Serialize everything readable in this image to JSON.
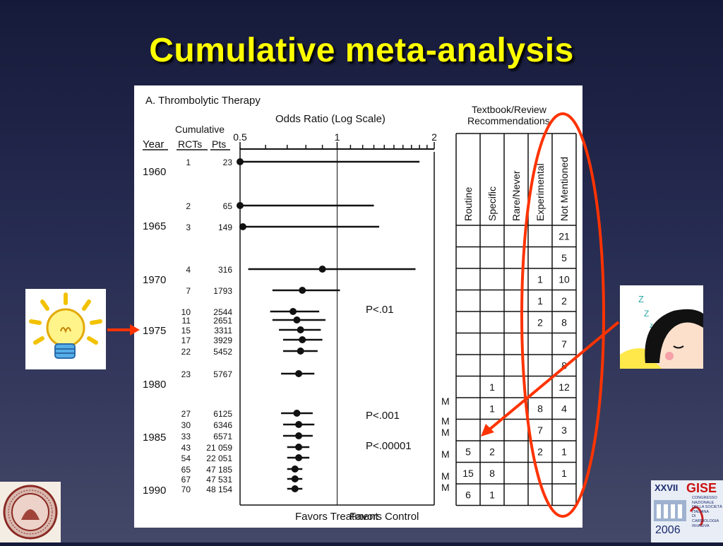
{
  "slide": {
    "title": "Cumulative meta-analysis"
  },
  "figure": {
    "panel_title": "A.  Thrombolytic Therapy",
    "axis_title": "Odds Ratio (Log Scale)",
    "col_year": "Year",
    "col_cumulative": "Cumulative",
    "col_rcts": "RCTs",
    "col_pts": "Pts",
    "favors_treatment": "Favors Treatment",
    "favors_control": "Favors Control",
    "p_values": [
      "P<.01",
      "P<.001",
      "P<.00001"
    ],
    "year_labels": [
      "1960",
      "1965",
      "1970",
      "1975",
      "1980",
      "1985",
      "1990"
    ],
    "recommendations_title_1": "Textbook/Review",
    "recommendations_title_2": "Recommendations",
    "rec_columns": [
      "Routine",
      "Specific",
      "Rare/Never",
      "Experimental",
      "Not Mentioned"
    ],
    "rec_rows": [
      [
        "",
        "",
        "",
        "",
        "21"
      ],
      [
        "",
        "",
        "",
        "",
        "5"
      ],
      [
        "",
        "",
        "",
        "1",
        "10"
      ],
      [
        "",
        "",
        "",
        "1",
        "2"
      ],
      [
        "",
        "",
        "",
        "2",
        "8"
      ],
      [
        "",
        "",
        "",
        "",
        "7"
      ],
      [
        "",
        "",
        "",
        "",
        "8"
      ],
      [
        "",
        "1",
        "",
        "",
        "12"
      ],
      [
        "",
        "1",
        "",
        "8",
        "4"
      ],
      [
        "",
        "",
        "",
        "7",
        "3"
      ],
      [
        "5",
        "2",
        "",
        "2",
        "1"
      ],
      [
        "15",
        "8",
        "",
        "",
        "1"
      ],
      [
        "6",
        "1",
        "",
        "",
        ""
      ]
    ],
    "m_markers": [
      "M",
      "M",
      "M",
      "M",
      "M",
      "M"
    ]
  },
  "chart_data": {
    "type": "forest",
    "xlabel": "Odds Ratio (Log Scale)",
    "x_scale": "log",
    "xlim": [
      0.5,
      2
    ],
    "x_ticks": [
      "0.5",
      "1",
      "2"
    ],
    "points": [
      {
        "rcts": "1",
        "pts": "23",
        "or": 0.5,
        "lo": 0.5,
        "hi": 1.8
      },
      {
        "rcts": "2",
        "pts": "65",
        "or": 0.5,
        "lo": 0.5,
        "hi": 1.3
      },
      {
        "rcts": "3",
        "pts": "149",
        "or": 0.51,
        "lo": 0.5,
        "hi": 1.35
      },
      {
        "rcts": "4",
        "pts": "316",
        "or": 0.9,
        "lo": 0.53,
        "hi": 1.75
      },
      {
        "rcts": "7",
        "pts": "1793",
        "or": 0.78,
        "lo": 0.63,
        "hi": 1.02
      },
      {
        "rcts": "10",
        "pts": "2544",
        "or": 0.73,
        "lo": 0.62,
        "hi": 0.88
      },
      {
        "rcts": "11",
        "pts": "2651",
        "or": 0.75,
        "lo": 0.63,
        "hi": 0.92
      },
      {
        "rcts": "15",
        "pts": "3311",
        "or": 0.77,
        "lo": 0.66,
        "hi": 0.89
      },
      {
        "rcts": "17",
        "pts": "3929",
        "or": 0.78,
        "lo": 0.68,
        "hi": 0.9
      },
      {
        "rcts": "22",
        "pts": "5452",
        "or": 0.77,
        "lo": 0.68,
        "hi": 0.87
      },
      {
        "rcts": "23",
        "pts": "5767",
        "or": 0.76,
        "lo": 0.67,
        "hi": 0.85
      },
      {
        "rcts": "27",
        "pts": "6125",
        "or": 0.75,
        "lo": 0.67,
        "hi": 0.84
      },
      {
        "rcts": "30",
        "pts": "6346",
        "or": 0.76,
        "lo": 0.68,
        "hi": 0.85
      },
      {
        "rcts": "33",
        "pts": "6571",
        "or": 0.76,
        "lo": 0.68,
        "hi": 0.84
      },
      {
        "rcts": "43",
        "pts": "21 059",
        "or": 0.76,
        "lo": 0.7,
        "hi": 0.82
      },
      {
        "rcts": "54",
        "pts": "22 051",
        "or": 0.76,
        "lo": 0.7,
        "hi": 0.82
      },
      {
        "rcts": "65",
        "pts": "47 185",
        "or": 0.74,
        "lo": 0.7,
        "hi": 0.78
      },
      {
        "rcts": "67",
        "pts": "47 531",
        "or": 0.74,
        "lo": 0.7,
        "hi": 0.78
      },
      {
        "rcts": "70",
        "pts": "48 154",
        "or": 0.74,
        "lo": 0.7,
        "hi": 0.78
      }
    ]
  },
  "badges": {
    "congress_title": "GISE",
    "congress_number": "XXVII",
    "congress_lines": [
      "CONGRESSO",
      "NAZIONALE",
      "DELLA SOCIETÀ",
      "ITALIANA",
      "DI CARDIOLOGIA",
      "INVASIVA"
    ],
    "congress_year": "2006"
  },
  "colors": {
    "title": "#ffff00",
    "annotation": "#ff3300",
    "figure_ink": "#111111"
  },
  "icons": [
    "lightbulb-icon",
    "sleeping-girl-icon",
    "university-seal-icon"
  ]
}
